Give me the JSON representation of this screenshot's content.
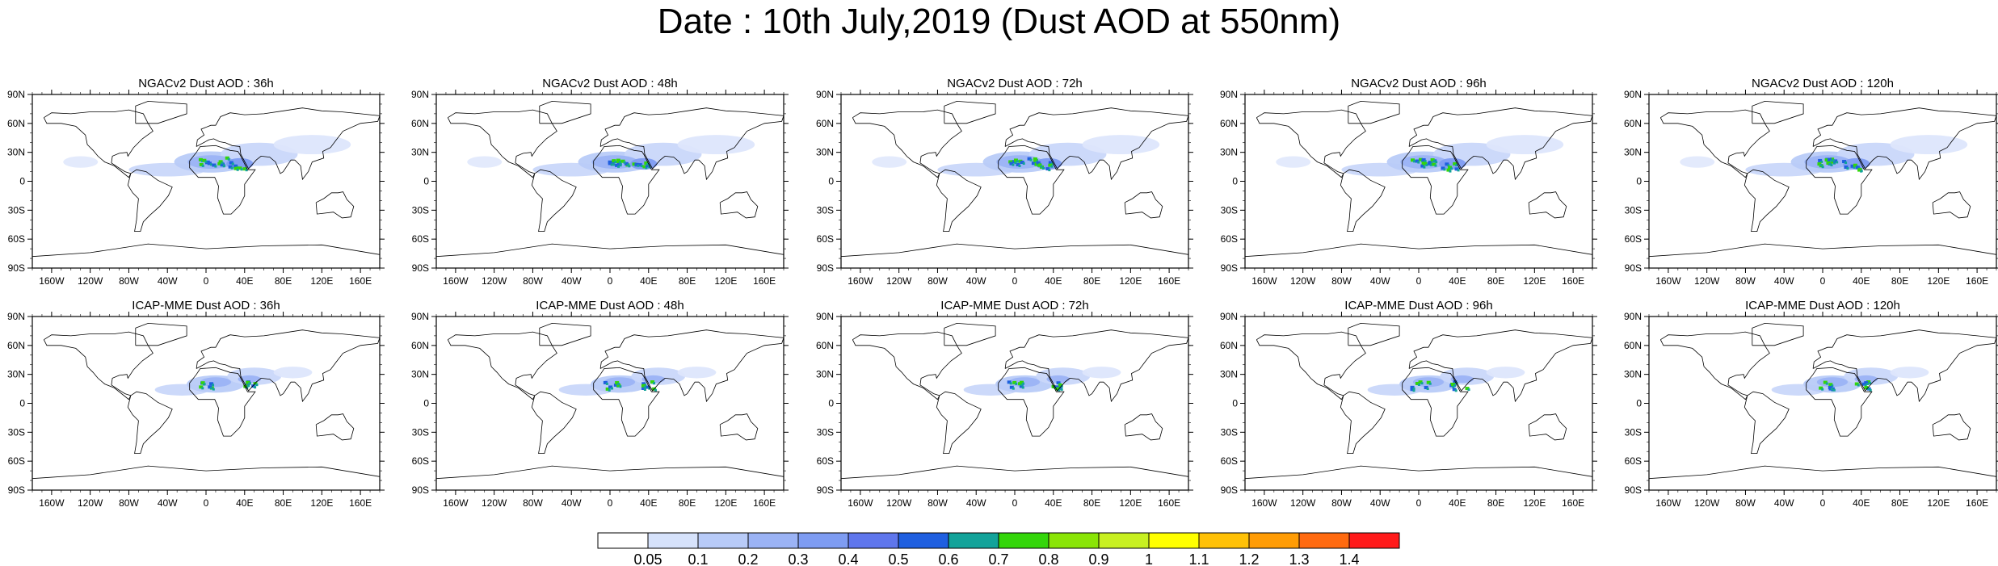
{
  "figure": {
    "title": "Date : 10th July,2019 (Dust AOD at 550nm)"
  },
  "chart_data": {
    "type": "heatmap",
    "variable": "Dust AOD at 550nm",
    "date": "10th July,2019",
    "map_projection": "cylindrical-equidistant",
    "lon_ticks": [
      "160W",
      "120W",
      "80W",
      "40W",
      "0",
      "40E",
      "80E",
      "120E",
      "160E"
    ],
    "lat_ticks": [
      "90N",
      "60N",
      "30N",
      "0",
      "30S",
      "60S",
      "90S"
    ],
    "xlim": [
      -180,
      180
    ],
    "ylim": [
      -90,
      90
    ],
    "legend_placement": "bottom",
    "colorbar": {
      "levels": [
        "0.05",
        "0.1",
        "0.2",
        "0.3",
        "0.4",
        "0.5",
        "0.6",
        "0.7",
        "0.8",
        "0.9",
        "1",
        "1.1",
        "1.2",
        "1.3",
        "1.4"
      ],
      "colors": [
        "#ffffff",
        "#d6e2fb",
        "#b8cbf8",
        "#9bb3f5",
        "#7e9cf2",
        "#5f76ec",
        "#1f5fe0",
        "#13a39a",
        "#34d60a",
        "#8ae507",
        "#c8f021",
        "#ffff00",
        "#ffc107",
        "#ff9c05",
        "#ff6a10",
        "#ff1a1a"
      ]
    },
    "panels": [
      {
        "title": "NGACv2 Dust AOD : 36h",
        "model": "NGACv2",
        "lead": "36h",
        "peak_aod": 0.9
      },
      {
        "title": "NGACv2 Dust AOD : 48h",
        "model": "NGACv2",
        "lead": "48h",
        "peak_aod": 0.9
      },
      {
        "title": "NGACv2 Dust AOD : 72h",
        "model": "NGACv2",
        "lead": "72h",
        "peak_aod": 0.8
      },
      {
        "title": "NGACv2 Dust AOD : 96h",
        "model": "NGACv2",
        "lead": "96h",
        "peak_aod": 0.9
      },
      {
        "title": "NGACv2 Dust AOD : 120h",
        "model": "NGACv2",
        "lead": "120h",
        "peak_aod": 0.9
      },
      {
        "title": "ICAP-MME Dust AOD : 36h",
        "model": "ICAP-MME",
        "lead": "36h",
        "peak_aod": 0.8
      },
      {
        "title": "ICAP-MME Dust AOD : 48h",
        "model": "ICAP-MME",
        "lead": "48h",
        "peak_aod": 0.7
      },
      {
        "title": "ICAP-MME Dust AOD : 72h",
        "model": "ICAP-MME",
        "lead": "72h",
        "peak_aod": 0.7
      },
      {
        "title": "ICAP-MME Dust AOD : 96h",
        "model": "ICAP-MME",
        "lead": "96h",
        "peak_aod": 0.8
      },
      {
        "title": "ICAP-MME Dust AOD : 120h",
        "model": "ICAP-MME",
        "lead": "120h",
        "peak_aod": 0.9
      }
    ]
  }
}
